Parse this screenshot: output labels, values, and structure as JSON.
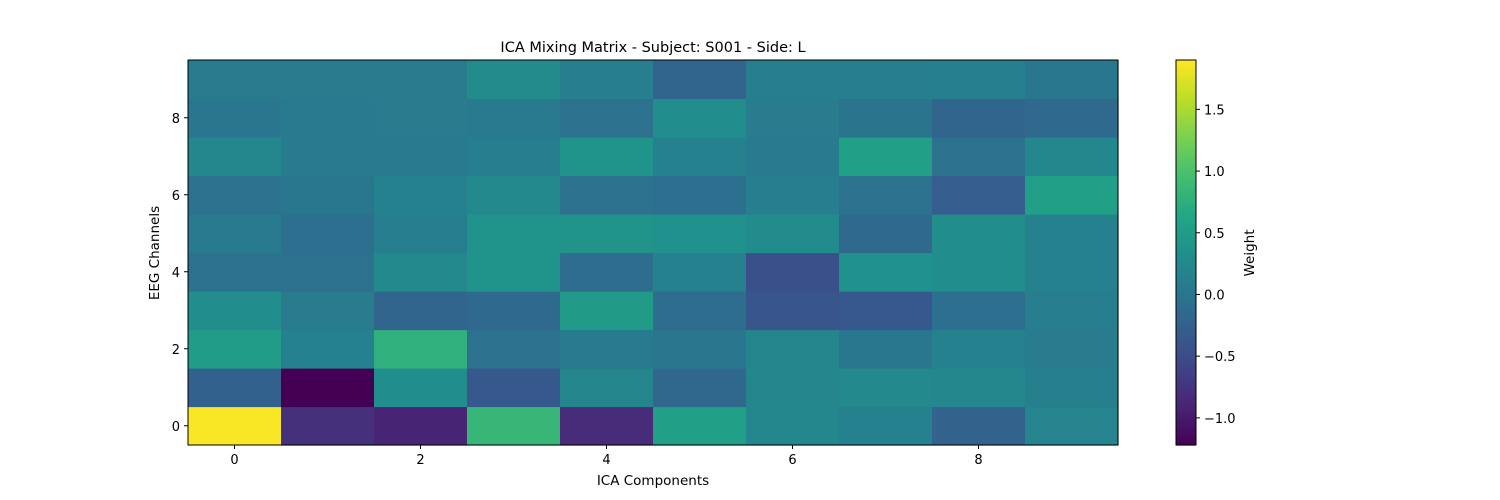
{
  "chart_data": {
    "type": "heatmap",
    "title": "ICA Mixing Matrix - Subject: S001 - Side: L",
    "xlabel": "ICA Components",
    "ylabel": "EEG Channels",
    "colorbar_label": "Weight",
    "colormap": "viridis",
    "vmin": -1.22,
    "vmax": 1.9,
    "x_categories": [
      0,
      1,
      2,
      3,
      4,
      5,
      6,
      7,
      8,
      9
    ],
    "y_categories": [
      0,
      1,
      2,
      3,
      4,
      5,
      6,
      7,
      8,
      9
    ],
    "x_ticks": [
      "0",
      "2",
      "4",
      "6",
      "8"
    ],
    "y_ticks": [
      "0",
      "2",
      "4",
      "6",
      "8"
    ],
    "colorbar_ticks": [
      "−1.0",
      "−0.5",
      "0.0",
      "0.5",
      "1.0",
      "1.5"
    ],
    "colorbar_tick_values": [
      -1.0,
      -0.5,
      0.0,
      0.5,
      1.0,
      1.5
    ],
    "values": [
      [
        1.88,
        -0.78,
        -0.9,
        0.85,
        -0.82,
        0.55,
        0.22,
        0.15,
        -0.22,
        0.18
      ],
      [
        -0.25,
        -1.22,
        0.3,
        -0.35,
        0.2,
        -0.18,
        0.2,
        0.25,
        0.22,
        0.12
      ],
      [
        0.5,
        0.15,
        0.78,
        -0.05,
        0.05,
        0.0,
        0.2,
        0.02,
        0.15,
        0.08
      ],
      [
        0.3,
        0.08,
        -0.2,
        -0.15,
        0.48,
        -0.1,
        -0.38,
        -0.35,
        -0.08,
        0.1
      ],
      [
        -0.05,
        -0.05,
        0.25,
        0.38,
        -0.1,
        0.15,
        -0.45,
        0.35,
        0.3,
        0.15
      ],
      [
        0.05,
        -0.08,
        0.1,
        0.4,
        0.38,
        0.35,
        0.28,
        -0.15,
        0.32,
        0.15
      ],
      [
        -0.05,
        0.02,
        0.15,
        0.25,
        -0.05,
        -0.08,
        0.1,
        -0.05,
        -0.3,
        0.55
      ],
      [
        0.22,
        0.05,
        0.05,
        0.1,
        0.4,
        0.15,
        0.05,
        0.55,
        -0.05,
        0.22
      ],
      [
        0.0,
        0.05,
        0.08,
        0.05,
        -0.05,
        0.3,
        0.08,
        -0.02,
        -0.2,
        -0.15
      ],
      [
        0.08,
        0.08,
        0.08,
        0.28,
        0.1,
        -0.2,
        0.1,
        0.1,
        0.12,
        0.02
      ]
    ]
  }
}
